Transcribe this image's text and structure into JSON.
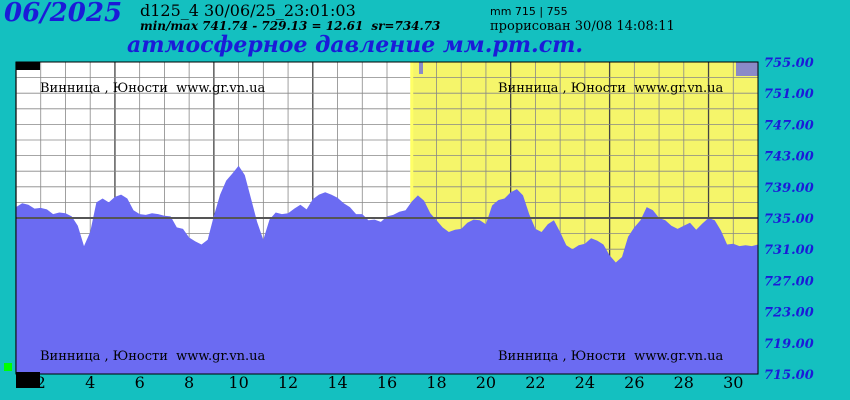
{
  "header": {
    "month": "06/2025",
    "station_code": "d125_4   30/06/25_23:01:03",
    "minmax": "min/max  741.74 - 729.13 = 12.61",
    "sr": "sr=734.73",
    "unit_range": "mm 715 | 755",
    "drawn_at": "прорисован 30/08 14:08:11",
    "title": "атмосферное давление мм.рт.ст."
  },
  "chart_data": {
    "type": "area",
    "title": "атмосферное давление мм.рт.ст.",
    "xlabel": "",
    "ylabel": "",
    "xlim": [
      1,
      31
    ],
    "ylim": [
      715,
      755
    ],
    "grid": true,
    "mean_line": 735.0,
    "highlight_start_day": 17.0,
    "x_tick_labels": [
      "2",
      "4",
      "6",
      "8",
      "10",
      "12",
      "14",
      "16",
      "18",
      "20",
      "22",
      "24",
      "26",
      "28",
      "30"
    ],
    "y_tick_labels": [
      "755.00",
      "751.00",
      "747.00",
      "743.00",
      "739.00",
      "735.00",
      "731.00",
      "727.00",
      "723.00",
      "719.00",
      "715.00"
    ],
    "watermark": "Винница , Юности  www.gr.vn.ua",
    "colors": {
      "fill": "#6b6bf2",
      "highlight": "#f5f56a",
      "mean_line": "#555555",
      "background": "#ffffff",
      "frame": "#14c0c0"
    },
    "series": [
      {
        "x": [
          1.0,
          1.25,
          1.5,
          1.75,
          2.0,
          2.25,
          2.5,
          2.75,
          3.0,
          3.25,
          3.5,
          3.75,
          4.0,
          4.25,
          4.5,
          4.75,
          5.0,
          5.25,
          5.5,
          5.75,
          6.0,
          6.25,
          6.5,
          6.75,
          7.0,
          7.25,
          7.5,
          7.75,
          8.0,
          8.25,
          8.5,
          8.75,
          9.0,
          9.25,
          9.5,
          9.75,
          10.0,
          10.25,
          10.5,
          10.75,
          11.0,
          11.25,
          11.5,
          11.75,
          12.0,
          12.25,
          12.5,
          12.75,
          13.0,
          13.25,
          13.5,
          13.75,
          14.0,
          14.25,
          14.5,
          14.75,
          15.0,
          15.25,
          15.5,
          15.75,
          16.0,
          16.25,
          16.5,
          16.75,
          17.0,
          17.25,
          17.5,
          17.75,
          18.0,
          18.25,
          18.5,
          18.75,
          19.0,
          19.25,
          19.5,
          19.75,
          20.0,
          20.25,
          20.5,
          20.75,
          21.0,
          21.25,
          21.5,
          21.75,
          22.0,
          22.25,
          22.5,
          22.75,
          23.0,
          23.25,
          23.5,
          23.75,
          24.0,
          24.25,
          24.5,
          24.75,
          25.0,
          25.25,
          25.5,
          25.75,
          26.0,
          26.25,
          26.5,
          26.75,
          27.0,
          27.25,
          27.5,
          27.75,
          28.0,
          28.25,
          28.5,
          28.75,
          29.0,
          29.25,
          29.5,
          29.75,
          30.0,
          30.25,
          30.5,
          30.75,
          31.0
        ],
        "values": [
          736.4,
          736.9,
          736.7,
          736.2,
          736.3,
          736.1,
          735.5,
          735.7,
          735.6,
          735.2,
          734.0,
          731.4,
          733.2,
          737.0,
          737.5,
          737.0,
          737.7,
          738.0,
          737.5,
          736.0,
          735.5,
          735.4,
          735.6,
          735.5,
          735.3,
          735.2,
          733.8,
          733.6,
          732.5,
          732.0,
          731.6,
          732.2,
          735.3,
          738.0,
          739.8,
          740.7,
          741.7,
          740.5,
          737.5,
          734.5,
          732.2,
          734.8,
          735.7,
          735.5,
          735.6,
          736.2,
          736.7,
          736.1,
          737.4,
          738.0,
          738.3,
          738.0,
          737.6,
          736.9,
          736.4,
          735.5,
          735.5,
          734.7,
          734.8,
          734.5,
          735.2,
          735.4,
          735.8,
          736.0,
          737.1,
          737.9,
          737.2,
          735.6,
          734.7,
          733.8,
          733.2,
          733.5,
          733.6,
          734.4,
          734.8,
          734.7,
          734.2,
          736.6,
          737.3,
          737.5,
          738.3,
          738.7,
          737.9,
          735.5,
          733.6,
          733.2,
          734.2,
          734.7,
          733.2,
          731.5,
          731.0,
          731.5,
          731.7,
          732.4,
          732.1,
          731.6,
          730.2,
          729.3,
          730.0,
          732.6,
          733.8,
          734.7,
          736.4,
          736.0,
          735.0,
          734.7,
          734.0,
          733.6,
          734.0,
          734.4,
          733.5,
          734.3,
          735.0,
          734.7,
          733.4,
          731.6,
          731.7,
          731.4,
          731.5,
          731.4,
          731.6
        ]
      }
    ]
  }
}
